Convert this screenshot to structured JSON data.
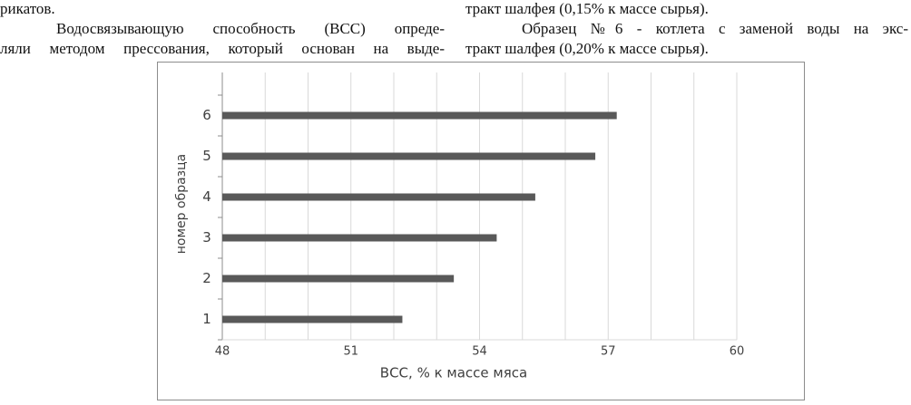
{
  "text": {
    "left": [
      "рикатов.",
      "Водосвязывающую способность (ВСС) опреде-",
      "ляли методом прессования, который основан на выде-"
    ],
    "right": [
      "тракт шалфея (0,15% к массе сырья).",
      "Образец №6 - котлета с заменой воды на экс-",
      "тракт шалфея (0,20% к массе сырья)."
    ]
  },
  "chart_data": {
    "type": "bar",
    "orientation": "horizontal",
    "categories": [
      "1",
      "2",
      "3",
      "4",
      "5",
      "6"
    ],
    "values": [
      52.2,
      53.4,
      54.4,
      55.3,
      56.7,
      57.2
    ],
    "color": "#595959",
    "xlim": [
      48,
      60
    ],
    "xticks": [
      48,
      51,
      54,
      57,
      60
    ],
    "minor_xticks": [
      49,
      50,
      52,
      53,
      55,
      56,
      58,
      59
    ],
    "grid": true,
    "xlabel": "ВСС, % к массе мяса",
    "ylabel": "номер образца"
  }
}
